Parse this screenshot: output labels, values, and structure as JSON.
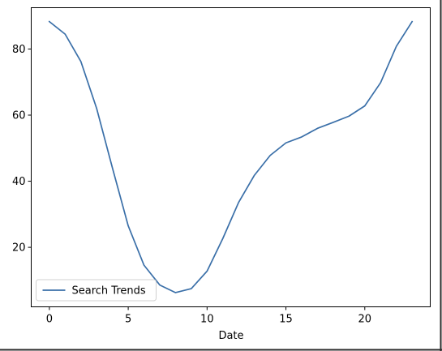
{
  "chart_data": {
    "type": "line",
    "title": "",
    "xlabel": "Date",
    "ylabel": "",
    "xlim": [
      -1.15,
      24.15
    ],
    "ylim": [
      2.0,
      92.5
    ],
    "xticks": [
      0,
      5,
      10,
      15,
      20
    ],
    "yticks": [
      20,
      40,
      60,
      80
    ],
    "grid": false,
    "legend_position": "lower-left",
    "series": [
      {
        "name": "Search Trends",
        "color": "#3a6fa8",
        "x": [
          0,
          1,
          2,
          3,
          4,
          5,
          6,
          7,
          8,
          9,
          10,
          11,
          12,
          13,
          14,
          15,
          16,
          17,
          18,
          19,
          20,
          21,
          22,
          23
        ],
        "y": [
          88.3,
          84.5,
          76.2,
          62.0,
          44.0,
          26.5,
          14.6,
          8.6,
          6.3,
          7.5,
          12.8,
          22.7,
          33.6,
          41.8,
          47.8,
          51.6,
          53.4,
          56.0,
          57.8,
          59.7,
          62.8,
          69.8,
          80.8,
          88.3
        ]
      }
    ]
  }
}
